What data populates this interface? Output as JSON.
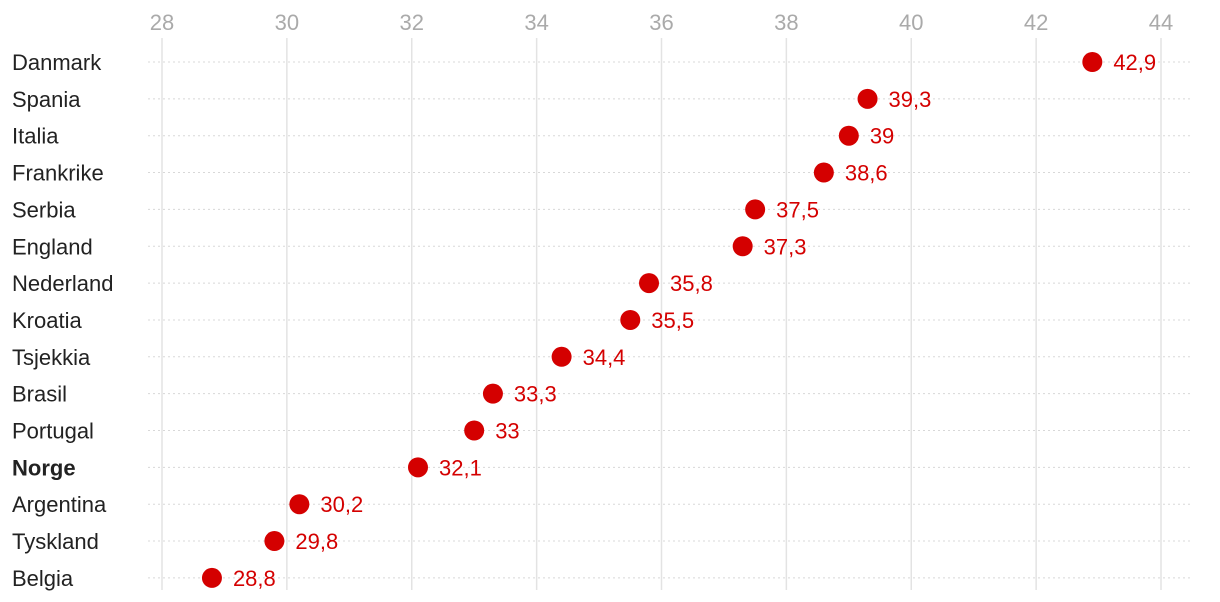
{
  "chart_data": {
    "type": "scatter",
    "orientation": "horizontal-dot",
    "title": "",
    "xlabel": "",
    "ylabel": "",
    "x_ticks": [
      28,
      30,
      32,
      34,
      36,
      38,
      40,
      42,
      44
    ],
    "xlim": [
      28,
      44
    ],
    "grid": true,
    "highlight_category": "Norge",
    "colors": {
      "dot": "#d40000",
      "label": "#d40000"
    },
    "categories": [
      "Danmark",
      "Spania",
      "Italia",
      "Frankrike",
      "Serbia",
      "England",
      "Nederland",
      "Kroatia",
      "Tsjekkia",
      "Brasil",
      "Portugal",
      "Norge",
      "Argentina",
      "Tyskland",
      "Belgia"
    ],
    "values": [
      42.9,
      39.3,
      39,
      38.6,
      37.5,
      37.3,
      35.8,
      35.5,
      34.4,
      33.3,
      33,
      32.1,
      30.2,
      29.8,
      28.8
    ],
    "value_labels": [
      "42,9",
      "39,3",
      "39",
      "38,6",
      "37,5",
      "37,3",
      "35,8",
      "35,5",
      "34,4",
      "33,3",
      "33",
      "32,1",
      "30,2",
      "29,8",
      "28,8"
    ]
  }
}
